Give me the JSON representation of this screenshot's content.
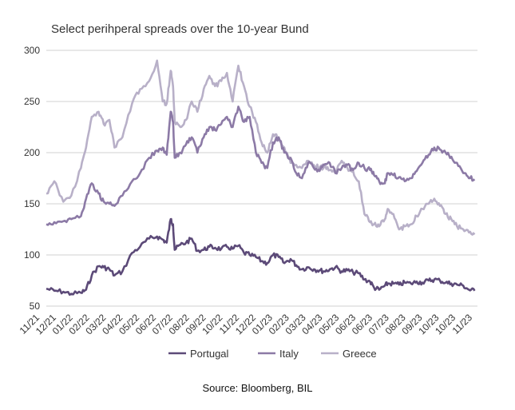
{
  "chart_data": {
    "type": "line",
    "title": "Select perihperal spreads over the 10-year Bund",
    "ylim": [
      50,
      300
    ],
    "yticks": [
      50,
      100,
      150,
      200,
      250,
      300
    ],
    "xlim": [
      "2021-11-01",
      "2023-11-30"
    ],
    "xticks": [
      "11/21",
      "12/21",
      "01/22",
      "02/22",
      "03/22",
      "04/22",
      "05/22",
      "06/22",
      "07/22",
      "08/22",
      "09/22",
      "10/22",
      "11/22",
      "12/22",
      "01/23",
      "02/23",
      "03/23",
      "04/23",
      "05/23",
      "06/23",
      "06/23",
      "07/23",
      "08/23",
      "09/23",
      "10/23",
      "10/23",
      "11/23"
    ],
    "grid": true,
    "legend_position": "bottom",
    "series": [
      {
        "name": "Portugal",
        "color": "#5c4a78",
        "x": [
          "2021-11-01",
          "2021-11-15",
          "2021-12-01",
          "2021-12-15",
          "2022-01-01",
          "2022-01-10",
          "2022-01-20",
          "2022-02-01",
          "2022-02-10",
          "2022-02-20",
          "2022-03-01",
          "2022-03-15",
          "2022-04-01",
          "2022-04-15",
          "2022-05-01",
          "2022-05-15",
          "2022-05-25",
          "2022-06-01",
          "2022-06-08",
          "2022-06-12",
          "2022-06-15",
          "2022-06-25",
          "2022-07-05",
          "2022-07-15",
          "2022-07-25",
          "2022-08-05",
          "2022-08-15",
          "2022-08-25",
          "2022-09-05",
          "2022-09-15",
          "2022-09-25",
          "2022-10-05",
          "2022-10-15",
          "2022-10-25",
          "2022-11-05",
          "2022-11-15",
          "2022-11-25",
          "2022-12-05",
          "2022-12-15",
          "2022-12-25",
          "2023-01-05",
          "2023-01-15",
          "2023-01-25",
          "2023-02-05",
          "2023-02-15",
          "2023-02-25",
          "2023-03-05",
          "2023-03-15",
          "2023-03-25",
          "2023-04-05",
          "2023-04-15",
          "2023-04-25",
          "2023-05-05",
          "2023-05-15",
          "2023-05-25",
          "2023-06-01",
          "2023-06-10",
          "2023-06-20",
          "2023-06-25",
          "2023-07-05",
          "2023-07-15",
          "2023-07-25",
          "2023-08-05",
          "2023-08-15",
          "2023-08-25",
          "2023-09-05",
          "2023-09-15",
          "2023-09-25",
          "2023-10-05",
          "2023-10-15",
          "2023-10-25",
          "2023-11-05",
          "2023-11-15",
          "2023-11-25"
        ],
        "values": [
          67,
          65,
          64,
          62,
          63,
          66,
          80,
          89,
          88,
          86,
          80,
          84,
          102,
          108,
          116,
          118,
          115,
          112,
          135,
          130,
          105,
          110,
          112,
          116,
          104,
          105,
          108,
          107,
          106,
          108,
          106,
          109,
          102,
          100,
          98,
          94,
          92,
          100,
          98,
          92,
          96,
          90,
          86,
          88,
          86,
          85,
          84,
          86,
          88,
          84,
          85,
          83,
          82,
          76,
          74,
          68,
          66,
          70,
          72,
          72,
          71,
          73,
          72,
          74,
          73,
          75,
          76,
          75,
          73,
          72,
          71,
          70,
          66,
          65
        ]
      },
      {
        "name": "Italy",
        "color": "#8c7aa6",
        "x": [
          "2021-11-01",
          "2021-11-15",
          "2021-12-01",
          "2021-12-15",
          "2022-01-01",
          "2022-01-10",
          "2022-01-20",
          "2022-02-01",
          "2022-02-10",
          "2022-02-20",
          "2022-03-01",
          "2022-03-15",
          "2022-04-01",
          "2022-04-15",
          "2022-05-01",
          "2022-05-15",
          "2022-05-25",
          "2022-06-01",
          "2022-06-08",
          "2022-06-12",
          "2022-06-15",
          "2022-06-25",
          "2022-07-05",
          "2022-07-15",
          "2022-07-25",
          "2022-08-05",
          "2022-08-15",
          "2022-08-25",
          "2022-09-05",
          "2022-09-15",
          "2022-09-25",
          "2022-10-05",
          "2022-10-15",
          "2022-10-25",
          "2022-11-05",
          "2022-11-15",
          "2022-11-25",
          "2022-12-05",
          "2022-12-15",
          "2022-12-25",
          "2023-01-05",
          "2023-01-15",
          "2023-01-25",
          "2023-02-05",
          "2023-02-15",
          "2023-02-25",
          "2023-03-05",
          "2023-03-15",
          "2023-03-25",
          "2023-04-05",
          "2023-04-15",
          "2023-04-25",
          "2023-05-05",
          "2023-05-15",
          "2023-05-25",
          "2023-06-01",
          "2023-06-10",
          "2023-06-20",
          "2023-06-25",
          "2023-07-05",
          "2023-07-15",
          "2023-07-25",
          "2023-08-05",
          "2023-08-15",
          "2023-08-25",
          "2023-09-05",
          "2023-09-15",
          "2023-09-25",
          "2023-10-05",
          "2023-10-15",
          "2023-10-25",
          "2023-11-05",
          "2023-11-15",
          "2023-11-25"
        ],
        "values": [
          130,
          132,
          133,
          135,
          138,
          155,
          170,
          160,
          152,
          150,
          148,
          158,
          172,
          180,
          195,
          202,
          205,
          198,
          240,
          230,
          195,
          200,
          208,
          215,
          200,
          215,
          225,
          222,
          228,
          235,
          225,
          245,
          230,
          235,
          200,
          190,
          185,
          210,
          215,
          200,
          195,
          180,
          175,
          190,
          185,
          182,
          188,
          190,
          180,
          185,
          188,
          183,
          190,
          185,
          183,
          178,
          172,
          170,
          180,
          178,
          176,
          172,
          175,
          182,
          190,
          198,
          205,
          203,
          200,
          196,
          190,
          180,
          175,
          174
        ]
      },
      {
        "name": "Greece",
        "color": "#b8b0c8",
        "x": [
          "2021-11-01",
          "2021-11-15",
          "2021-12-01",
          "2021-12-15",
          "2022-01-01",
          "2022-01-10",
          "2022-01-20",
          "2022-02-01",
          "2022-02-10",
          "2022-02-20",
          "2022-03-01",
          "2022-03-15",
          "2022-04-01",
          "2022-04-15",
          "2022-05-01",
          "2022-05-15",
          "2022-05-25",
          "2022-06-01",
          "2022-06-08",
          "2022-06-12",
          "2022-06-15",
          "2022-06-25",
          "2022-07-05",
          "2022-07-15",
          "2022-07-25",
          "2022-08-05",
          "2022-08-15",
          "2022-08-25",
          "2022-09-05",
          "2022-09-15",
          "2022-09-25",
          "2022-10-05",
          "2022-10-15",
          "2022-10-25",
          "2022-11-05",
          "2022-11-15",
          "2022-11-25",
          "2022-12-05",
          "2022-12-15",
          "2022-12-25",
          "2023-01-05",
          "2023-01-15",
          "2023-01-25",
          "2023-02-05",
          "2023-02-15",
          "2023-02-25",
          "2023-03-05",
          "2023-03-15",
          "2023-03-25",
          "2023-04-05",
          "2023-04-15",
          "2023-04-25",
          "2023-05-05",
          "2023-05-15",
          "2023-05-25",
          "2023-06-01",
          "2023-06-10",
          "2023-06-20",
          "2023-06-25",
          "2023-07-05",
          "2023-07-15",
          "2023-07-25",
          "2023-08-05",
          "2023-08-15",
          "2023-08-25",
          "2023-09-05",
          "2023-09-15",
          "2023-09-25",
          "2023-10-05",
          "2023-10-15",
          "2023-10-25",
          "2023-11-05",
          "2023-11-15",
          "2023-11-25"
        ],
        "values": [
          160,
          172,
          152,
          158,
          185,
          205,
          235,
          240,
          228,
          232,
          205,
          215,
          248,
          262,
          270,
          290,
          250,
          248,
          280,
          265,
          230,
          225,
          232,
          250,
          240,
          262,
          275,
          265,
          270,
          278,
          250,
          285,
          265,
          245,
          230,
          210,
          200,
          218,
          215,
          205,
          190,
          188,
          185,
          192,
          188,
          185,
          186,
          183,
          180,
          192,
          185,
          182,
          172,
          140,
          132,
          130,
          128,
          135,
          145,
          140,
          125,
          128,
          130,
          138,
          145,
          150,
          155,
          148,
          140,
          135,
          128,
          125,
          122,
          120
        ]
      }
    ],
    "source": "Source: Bloomberg, BIL"
  }
}
